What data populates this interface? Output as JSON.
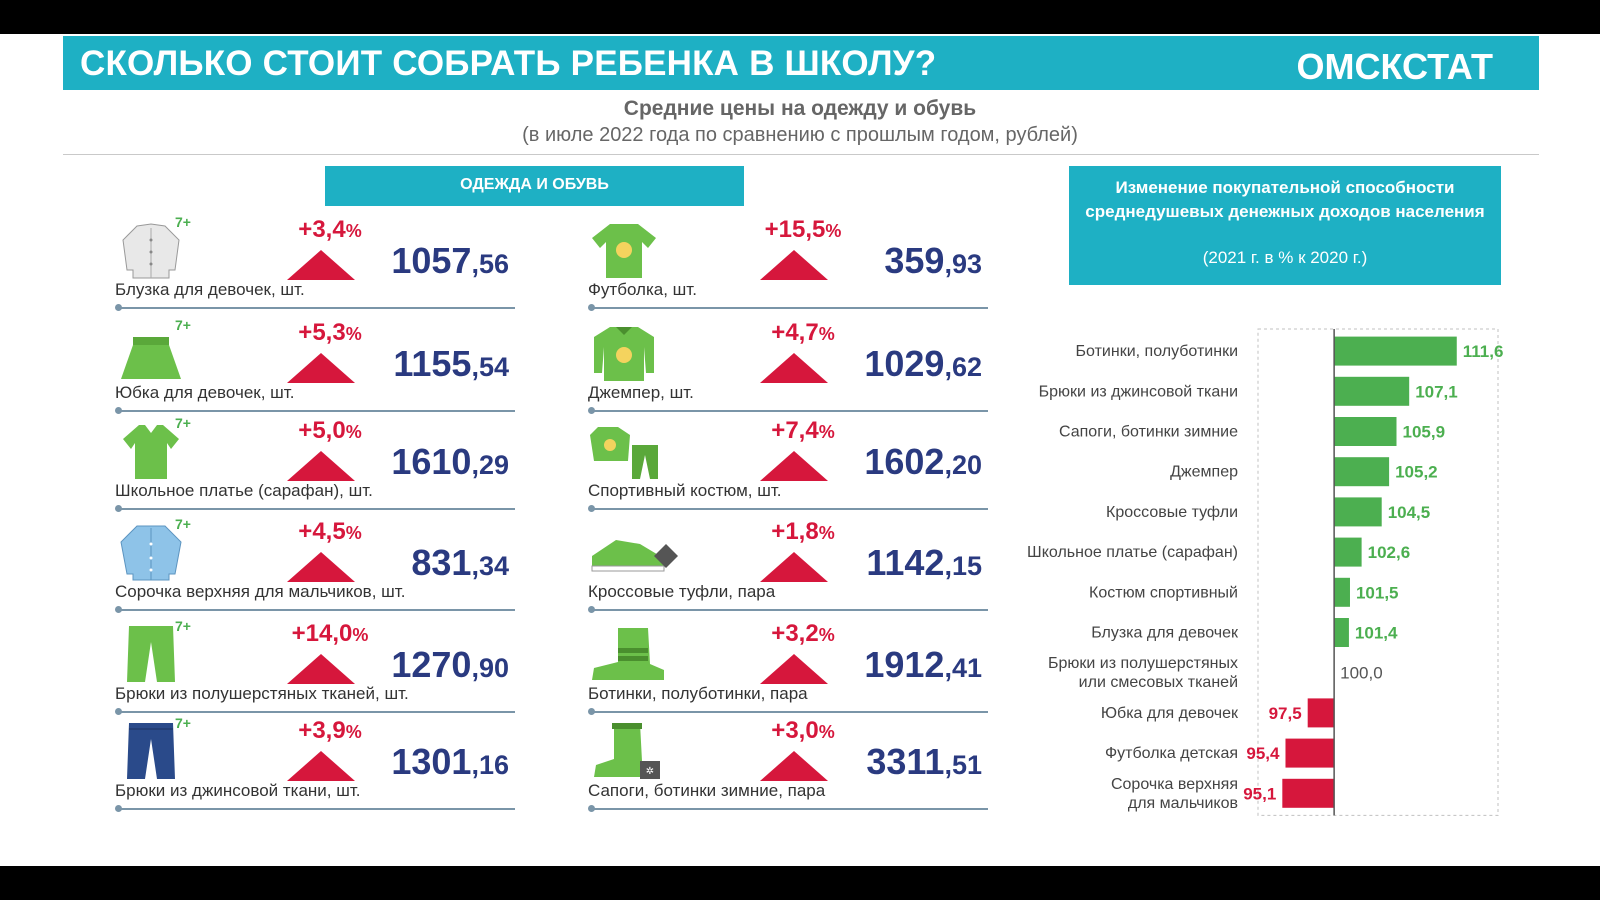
{
  "header": {
    "title": "СКОЛЬКО СТОИТ СОБРАТЬ РЕБЕНКА В ШКОЛУ?",
    "brand": "ОМСКСТАТ"
  },
  "subtitle": "Средние цены на одежду и обувь",
  "subnote": "(в июле 2022 года по сравнению с прошлым годом, рублей)",
  "section_label": "ОДЕЖДА И ОБУВЬ",
  "colors": {
    "accent": "#1eb0c4",
    "increase": "#d6173c",
    "price": "#2a3a80",
    "bar_positive": "#4caf50",
    "bar_negative": "#d6173c"
  },
  "items_left": [
    {
      "label": "Блузка для девочек, шт.",
      "age": "7+",
      "change": "+3,4",
      "price_int": "1057",
      "price_dec": ",56",
      "icon": "blouse-icon",
      "icon_color": "#e8e8e8"
    },
    {
      "label": "Юбка для девочек, шт.",
      "age": "7+",
      "change": "+5,3",
      "price_int": "1155",
      "price_dec": ",54",
      "icon": "skirt-icon",
      "icon_color": "#6cc04a"
    },
    {
      "label": "Школьное платье (сарафан), шт.",
      "age": "7+",
      "change": "+5,0",
      "price_int": "1610",
      "price_dec": ",29",
      "icon": "dress-icon",
      "icon_color": "#6cc04a"
    },
    {
      "label": "Сорочка верхняя для мальчиков, шт.",
      "age": "7+",
      "change": "+4,5",
      "price_int": "831",
      "price_dec": ",34",
      "icon": "shirt-icon",
      "icon_color": "#8ec3e8"
    },
    {
      "label": "Брюки из полушерстяных тканей, шт.",
      "age": "7+",
      "change": "+14,0",
      "price_int": "1270",
      "price_dec": ",90",
      "icon": "trousers-icon",
      "icon_color": "#6cc04a"
    },
    {
      "label": "Брюки из джинсовой ткани, шт.",
      "age": "7+",
      "change": "+3,9",
      "price_int": "1301",
      "price_dec": ",16",
      "icon": "jeans-icon",
      "icon_color": "#2a4a8a"
    }
  ],
  "items_right": [
    {
      "label": "Футболка, шт.",
      "age": "",
      "change": "+15,5",
      "price_int": "359",
      "price_dec": ",93",
      "icon": "tshirt-icon",
      "icon_color": "#6cc04a"
    },
    {
      "label": "Джемпер, шт.",
      "age": "",
      "change": "+4,7",
      "price_int": "1029",
      "price_dec": ",62",
      "icon": "jumper-icon",
      "icon_color": "#6cc04a"
    },
    {
      "label": "Спортивный костюм, шт.",
      "age": "",
      "change": "+7,4",
      "price_int": "1602",
      "price_dec": ",20",
      "icon": "tracksuit-icon",
      "icon_color": "#6cc04a"
    },
    {
      "label": "Кроссовые туфли, пара",
      "age": "",
      "change": "+1,8",
      "price_int": "1142",
      "price_dec": ",15",
      "icon": "sneaker-icon",
      "icon_color": "#6cc04a"
    },
    {
      "label": "Ботинки, полуботинки, пара",
      "age": "",
      "change": "+3,2",
      "price_int": "1912",
      "price_dec": ",41",
      "icon": "boot-icon",
      "icon_color": "#6cc04a"
    },
    {
      "label": "Сапоги, ботинки зимние, пара",
      "age": "",
      "change": "+3,0",
      "price_int": "3311",
      "price_dec": ",51",
      "icon": "winter-boot-icon",
      "icon_color": "#6cc04a"
    }
  ],
  "percent_sign": "%",
  "chart_title": "Изменение покупательной способности среднедушевых денежных доходов населения",
  "chart_note": "(2021 г. в % к 2020 г.)",
  "chart_data": {
    "type": "bar",
    "orientation": "horizontal",
    "baseline": 100,
    "categories": [
      "Ботинки, полуботинки",
      "Брюки из джинсовой ткани",
      "Сапоги, ботинки зимние",
      "Джемпер",
      "Кроссовые туфли",
      "Школьное платье (сарафан)",
      "Костюм спортивный",
      "Блузка для девочек",
      "Брюки из полушерстяных\nили смесовых тканей",
      "Юбка для девочек",
      "Футболка детская",
      "Сорочка верхняя\nдля мальчиков"
    ],
    "values": [
      111.6,
      107.1,
      105.9,
      105.2,
      104.5,
      102.6,
      101.5,
      101.4,
      100.0,
      97.5,
      95.4,
      95.1
    ],
    "value_labels": [
      "111,6",
      "107,1",
      "105,9",
      "105,2",
      "104,5",
      "102,6",
      "101,5",
      "101,4",
      "100,0",
      "97,5",
      "95,4",
      "95,1"
    ],
    "xlim": [
      92.8,
      115.5
    ],
    "grid": false,
    "legend": "none"
  }
}
